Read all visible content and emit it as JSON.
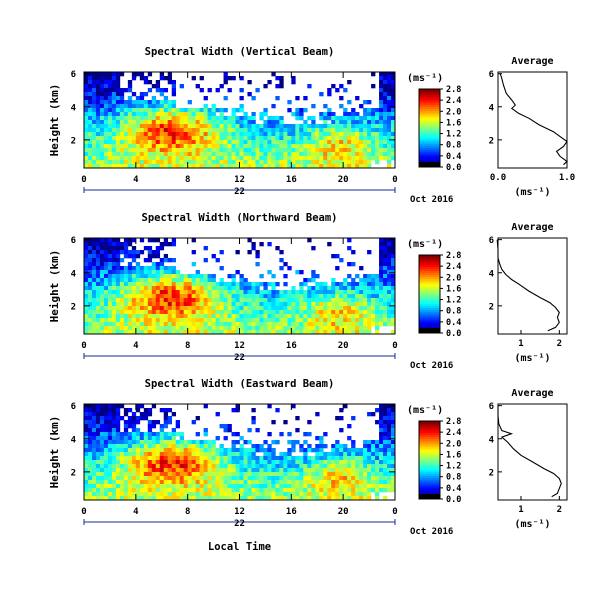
{
  "chart_data": [
    {
      "type": "heatmap",
      "title": "Spectral Width (Vertical Beam)",
      "ylabel": "Height (km)",
      "xlabel": "",
      "xticks": [
        "0",
        "4",
        "8",
        "12",
        "16",
        "20",
        "0"
      ],
      "date_label": "22",
      "month_label": "Oct 2016",
      "yticks": [
        "2",
        "4",
        "6"
      ],
      "colorbar": {
        "unit": "(ms⁻¹)",
        "ticks": [
          "0.0",
          "0.4",
          "0.8",
          "1.2",
          "1.6",
          "2.0",
          "2.4",
          "2.8"
        ]
      },
      "average": {
        "title": "Average",
        "xlabel": "(ms⁻¹)",
        "xticks": [
          "0.0",
          "1.0"
        ],
        "yticks": [
          "2",
          "4",
          "6"
        ],
        "profile": [
          [
            0.95,
            0.5
          ],
          [
            1.0,
            0.7
          ],
          [
            0.9,
            1.0
          ],
          [
            0.85,
            1.3
          ],
          [
            0.95,
            1.6
          ],
          [
            1.0,
            1.9
          ],
          [
            0.9,
            2.2
          ],
          [
            0.8,
            2.5
          ],
          [
            0.6,
            2.9
          ],
          [
            0.45,
            3.3
          ],
          [
            0.3,
            3.6
          ],
          [
            0.2,
            3.9
          ],
          [
            0.25,
            4.1
          ],
          [
            0.2,
            4.4
          ],
          [
            0.12,
            4.8
          ],
          [
            0.08,
            5.3
          ],
          [
            0.05,
            5.8
          ],
          [
            0.03,
            6.0
          ]
        ]
      }
    },
    {
      "type": "heatmap",
      "title": "Spectral Width (Northward Beam)",
      "ylabel": "Height (km)",
      "xlabel": "",
      "xticks": [
        "0",
        "4",
        "8",
        "12",
        "16",
        "20",
        "0"
      ],
      "date_label": "22",
      "month_label": "Oct 2016",
      "yticks": [
        "2",
        "4",
        "6"
      ],
      "colorbar": {
        "unit": "(ms⁻¹)",
        "ticks": [
          "0.0",
          "0.4",
          "0.8",
          "1.2",
          "1.6",
          "2.0",
          "2.4",
          "2.8"
        ]
      },
      "average": {
        "title": "Average",
        "xlabel": "(ms⁻¹)",
        "xticks": [
          "1",
          "2"
        ],
        "yticks": [
          "2",
          "4",
          "6"
        ],
        "profile": [
          [
            1.7,
            0.5
          ],
          [
            1.9,
            0.7
          ],
          [
            2.0,
            1.0
          ],
          [
            1.95,
            1.3
          ],
          [
            2.0,
            1.6
          ],
          [
            1.9,
            1.9
          ],
          [
            1.75,
            2.2
          ],
          [
            1.5,
            2.5
          ],
          [
            1.2,
            2.9
          ],
          [
            0.95,
            3.3
          ],
          [
            0.75,
            3.6
          ],
          [
            0.6,
            3.9
          ],
          [
            0.5,
            4.2
          ],
          [
            0.45,
            4.5
          ],
          [
            0.4,
            4.9
          ],
          [
            0.4,
            5.4
          ],
          [
            0.38,
            6.0
          ]
        ]
      }
    },
    {
      "type": "heatmap",
      "title": "Spectral Width (Eastward Beam)",
      "ylabel": "Height (km)",
      "xlabel": "Local Time",
      "xticks": [
        "0",
        "4",
        "8",
        "12",
        "16",
        "20",
        "0"
      ],
      "date_label": "22",
      "month_label": "Oct 2016",
      "yticks": [
        "2",
        "4",
        "6"
      ],
      "colorbar": {
        "unit": "(ms⁻¹)",
        "ticks": [
          "0.0",
          "0.4",
          "0.8",
          "1.2",
          "1.6",
          "2.0",
          "2.4",
          "2.8"
        ]
      },
      "average": {
        "title": "Average",
        "xlabel": "(ms⁻¹)",
        "xticks": [
          "1",
          "2"
        ],
        "yticks": [
          "2",
          "4",
          "6"
        ],
        "profile": [
          [
            1.8,
            0.5
          ],
          [
            1.95,
            0.7
          ],
          [
            2.0,
            1.0
          ],
          [
            2.05,
            1.3
          ],
          [
            2.0,
            1.6
          ],
          [
            1.85,
            1.9
          ],
          [
            1.6,
            2.2
          ],
          [
            1.3,
            2.6
          ],
          [
            1.0,
            3.0
          ],
          [
            0.8,
            3.4
          ],
          [
            0.65,
            3.8
          ],
          [
            0.5,
            4.1
          ],
          [
            0.75,
            4.3
          ],
          [
            0.5,
            4.5
          ],
          [
            0.42,
            4.9
          ],
          [
            0.4,
            5.4
          ],
          [
            0.4,
            6.0
          ]
        ]
      }
    }
  ]
}
